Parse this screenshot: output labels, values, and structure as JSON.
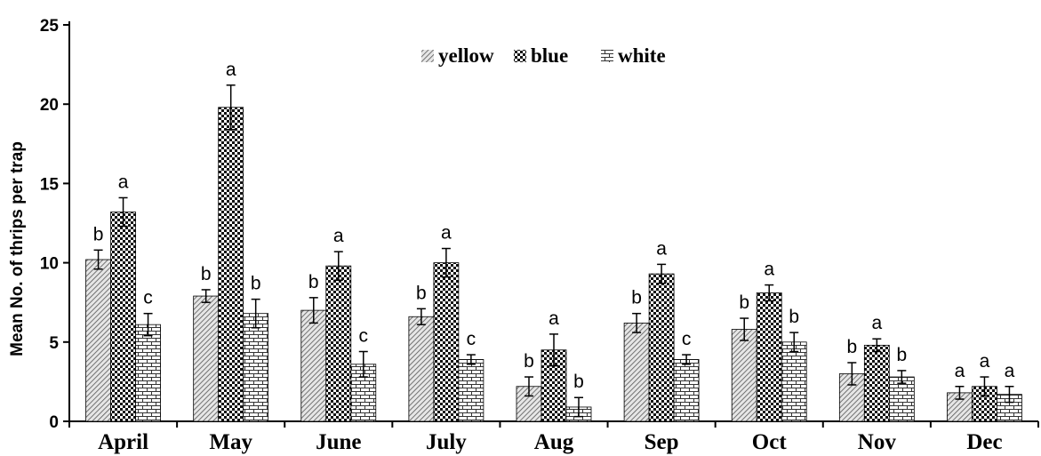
{
  "chart_data": {
    "type": "bar",
    "title": "",
    "xlabel": "",
    "ylabel": "Mean No. of thrips per trap",
    "ylim": [
      0,
      25
    ],
    "yticks": [
      0,
      5,
      10,
      15,
      20,
      25
    ],
    "grid": false,
    "legend_position": "top-center",
    "categories": [
      "April",
      "May",
      "June",
      "July",
      "Aug",
      "Sep",
      "Oct",
      "Nov",
      "Dec"
    ],
    "series": [
      {
        "name": "yellow",
        "pattern": "diagonal-hatch",
        "values": [
          10.2,
          7.9,
          7.0,
          6.6,
          2.2,
          6.2,
          5.8,
          3.0,
          1.8
        ],
        "errors": [
          0.6,
          0.4,
          0.8,
          0.5,
          0.6,
          0.6,
          0.7,
          0.7,
          0.4
        ],
        "letters": [
          "b",
          "b",
          "b",
          "b",
          "b",
          "b",
          "b",
          "b",
          "a"
        ]
      },
      {
        "name": "blue",
        "pattern": "checkerboard",
        "values": [
          13.2,
          19.8,
          9.8,
          10.0,
          4.5,
          9.3,
          8.1,
          4.8,
          2.2
        ],
        "errors": [
          0.9,
          1.4,
          0.9,
          0.9,
          1.0,
          0.6,
          0.5,
          0.4,
          0.6
        ],
        "letters": [
          "a",
          "a",
          "a",
          "a",
          "a",
          "a",
          "a",
          "a",
          "a"
        ]
      },
      {
        "name": "white",
        "pattern": "brick",
        "values": [
          6.1,
          6.8,
          3.6,
          3.9,
          0.9,
          3.9,
          5.0,
          2.8,
          1.7
        ],
        "errors": [
          0.7,
          0.9,
          0.8,
          0.3,
          0.6,
          0.3,
          0.6,
          0.4,
          0.5
        ],
        "letters": [
          "c",
          "b",
          "c",
          "c",
          "b",
          "c",
          "b",
          "b",
          "a"
        ]
      }
    ],
    "colors": {
      "ink": "#000000",
      "background": "#ffffff",
      "hatch": "#555555"
    }
  }
}
